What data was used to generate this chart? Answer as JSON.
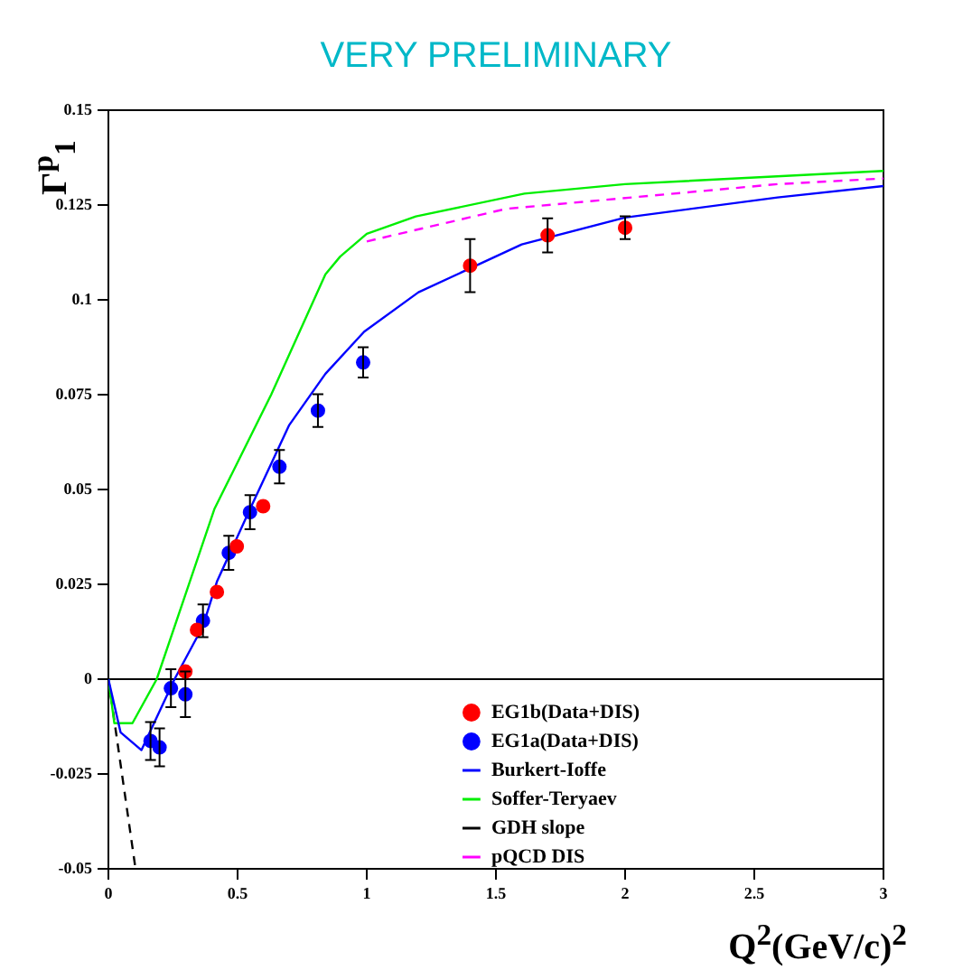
{
  "chart_data": {
    "type": "scatter",
    "title": "VERY PRELIMINARY",
    "xlabel": "Q$^{2}$(GeV/c)$^{2}$",
    "ylabel": "Γ$^{p}$$_{1}$",
    "xlim": [
      0,
      3
    ],
    "ylim": [
      -0.05,
      0.15
    ],
    "xticks": [
      0,
      0.5,
      1,
      1.5,
      2,
      2.5,
      3
    ],
    "yticks": [
      -0.05,
      -0.025,
      0,
      0.025,
      0.05,
      0.075,
      0.1,
      0.125,
      0.15
    ],
    "grid": false,
    "legend": "bottom right",
    "ref_lines": [
      {
        "axis": "y",
        "value": 0,
        "color": "#000000"
      }
    ],
    "series": [
      {
        "name": "EG1b(Data+DIS)",
        "type": "scatter",
        "marker": "circle",
        "color": "#ff0000",
        "x": [
          0.298,
          0.343,
          0.42,
          0.497,
          0.599,
          1.4,
          1.7,
          2.0
        ],
        "values": [
          0.002,
          0.013,
          0.023,
          0.035,
          0.0456,
          0.109,
          0.117,
          0.119
        ],
        "errors": [
          null,
          null,
          null,
          null,
          null,
          0.007,
          0.0045,
          0.003
        ]
      },
      {
        "name": "EG1a(Data+DIS)",
        "type": "scatter",
        "marker": "circle",
        "color": "#0000ff",
        "x": [
          0.163,
          0.198,
          0.242,
          0.298,
          0.366,
          0.466,
          0.548,
          0.662,
          0.811,
          0.986
        ],
        "values": [
          -0.0163,
          -0.018,
          -0.0024,
          -0.004,
          0.0154,
          0.0333,
          0.044,
          0.056,
          0.0708,
          0.0835
        ],
        "errors": [
          0.005,
          0.005,
          0.005,
          0.006,
          0.0043,
          0.0045,
          0.0045,
          0.0044,
          0.0043,
          0.004
        ]
      },
      {
        "name": "Burkert-Ioffe",
        "type": "line",
        "marker": "none",
        "line_style": "solid",
        "color": "#0000ff",
        "x": [
          0,
          0.047,
          0.128,
          0.256,
          0.366,
          0.42,
          0.548,
          0.7,
          0.84,
          0.99,
          1.2,
          1.6,
          2.0,
          2.59,
          3.0
        ],
        "values": [
          0,
          -0.014,
          -0.0187,
          0,
          0.014,
          0.0257,
          0.0448,
          0.067,
          0.0805,
          0.0916,
          0.102,
          0.1146,
          0.1217,
          0.127,
          0.13
        ]
      },
      {
        "name": "Soffer-Teryaev",
        "type": "line",
        "marker": "none",
        "line_style": "solid",
        "color": "#00ee00",
        "x": [
          0,
          0.023,
          0.093,
          0.187,
          0.315,
          0.41,
          0.63,
          0.84,
          0.897,
          1.0,
          1.19,
          1.61,
          2.0,
          3.0
        ],
        "values": [
          0,
          -0.0116,
          -0.0116,
          0,
          0.0257,
          0.0448,
          0.075,
          0.1067,
          0.1114,
          0.1174,
          0.122,
          0.128,
          0.1305,
          0.134
        ]
      },
      {
        "name": "GDH slope",
        "type": "line",
        "marker": "none",
        "line_style": "dashed",
        "color": "#000000",
        "x": [
          0,
          0.105
        ],
        "values": [
          0,
          -0.05
        ]
      },
      {
        "name": "pQCD DIS",
        "type": "line",
        "marker": "none",
        "line_style": "dashed",
        "color": "#ff00ff",
        "x": [
          1.0,
          1.54,
          2.59,
          3.0
        ],
        "values": [
          0.1154,
          0.124,
          0.1305,
          0.132
        ]
      }
    ]
  }
}
